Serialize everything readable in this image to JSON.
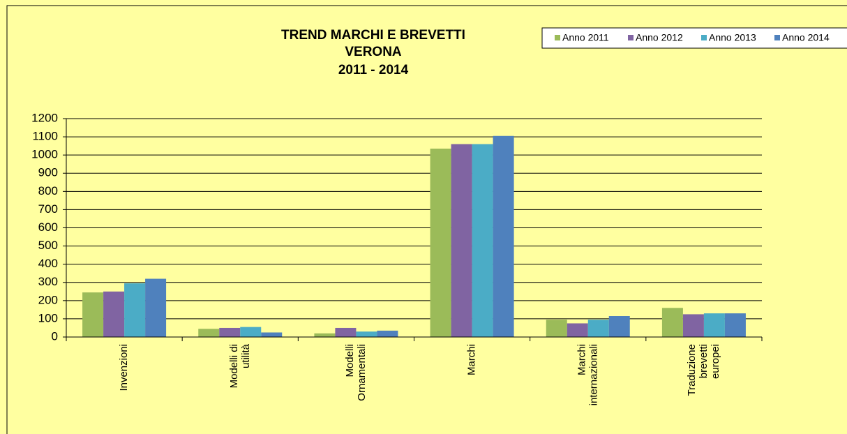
{
  "chart_data": {
    "type": "bar",
    "title": [
      "TREND MARCHI E BREVETTI",
      "VERONA",
      "2011 - 2014"
    ],
    "categories": [
      "Invenzioni",
      "Modelli di\nutilità",
      "Modelli\nOrnamentali",
      "Marchi",
      "Marchi\ninternazionali",
      "Traduzione\nbrevetti\neuropei"
    ],
    "series": [
      {
        "name": "Anno 2011",
        "color": "#9bbb59",
        "values": [
          245,
          45,
          20,
          1035,
          95,
          160
        ]
      },
      {
        "name": "Anno 2012",
        "color": "#8064a2",
        "values": [
          250,
          50,
          50,
          1060,
          75,
          125
        ]
      },
      {
        "name": "Anno 2013",
        "color": "#4bacc6",
        "values": [
          295,
          55,
          30,
          1060,
          95,
          130
        ]
      },
      {
        "name": "Anno 2014",
        "color": "#4f81bd",
        "values": [
          320,
          25,
          35,
          1105,
          115,
          130
        ]
      }
    ],
    "ylim": [
      0,
      1200
    ],
    "yticks": [
      0,
      100,
      200,
      300,
      400,
      500,
      600,
      700,
      800,
      900,
      1000,
      1100,
      1200
    ],
    "grid": true,
    "legend": "top-right"
  }
}
